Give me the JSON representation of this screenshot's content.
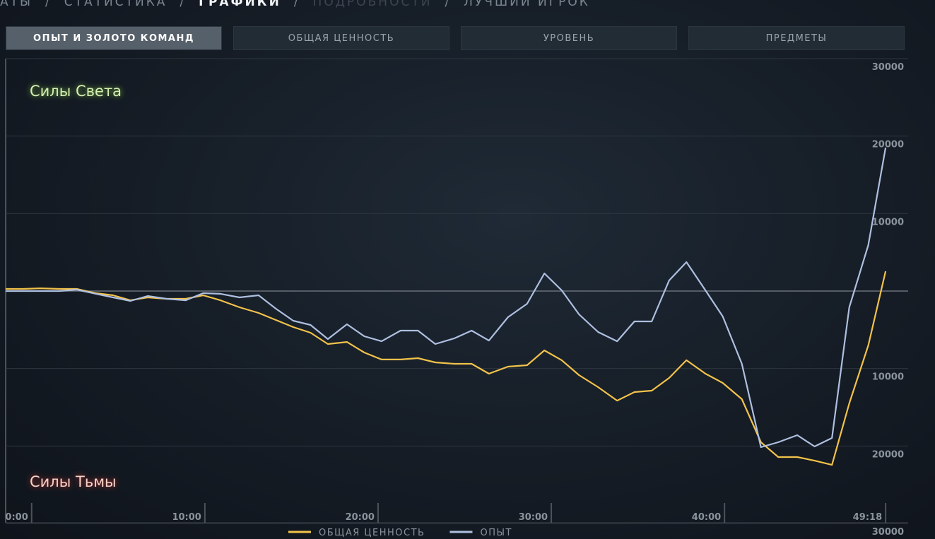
{
  "nav": {
    "items": [
      "АТЫ",
      "СТАТИСТИКА",
      "ГРАФИКИ",
      "ПОДРОБНОСТИ",
      "ЛУЧШИЙ ИГРОК"
    ],
    "separator": "/",
    "active": 2
  },
  "tabs": {
    "items": [
      "ОПЫТ И ЗОЛОТО КОМАНД",
      "ОБЩАЯ ЦЕННОСТЬ",
      "УРОВЕНЬ",
      "ПРЕДМЕТЫ"
    ],
    "active": 0
  },
  "chart_data": {
    "type": "line",
    "top_label": "Силы Света",
    "bottom_label": "Силы Тьмы",
    "x": [
      -1.5,
      -0.5,
      0.5,
      1.6,
      2.6,
      3.7,
      4.7,
      5.7,
      6.7,
      7.8,
      8.9,
      9.9,
      10.9,
      12.0,
      13.1,
      14.1,
      15.1,
      16.1,
      17.1,
      18.2,
      19.2,
      20.2,
      21.3,
      22.3,
      23.3,
      24.4,
      25.4,
      26.4,
      27.5,
      28.6,
      29.6,
      30.6,
      31.6,
      32.7,
      33.8,
      34.8,
      35.8,
      36.8,
      37.8,
      38.9,
      39.9,
      41.0,
      42.1,
      43.1,
      44.2,
      45.2,
      46.2,
      47.2,
      48.3,
      49.3
    ],
    "xlim": [
      -1.5,
      50.6
    ],
    "xticks": [
      {
        "value": 0,
        "label": "0:00"
      },
      {
        "value": 10,
        "label": "10:00"
      },
      {
        "value": 20,
        "label": "20:00"
      },
      {
        "value": 30,
        "label": "30:00"
      },
      {
        "value": 40,
        "label": "40:00"
      },
      {
        "value": 49.3,
        "label": "49:18"
      }
    ],
    "ylim": [
      -30000,
      30000
    ],
    "yticks": [
      30000,
      20000,
      10000,
      {
        "value": -10000,
        "label": "10000"
      },
      {
        "value": -20000,
        "label": "20000"
      },
      {
        "value": -30000,
        "label": "30000"
      }
    ],
    "grid": true,
    "legend": "bottom",
    "series": [
      {
        "name": "ОБЩАЯ ЦЕННОСТЬ",
        "color": "#f2c24a",
        "values": [
          270,
          270,
          360,
          270,
          270,
          -270,
          -550,
          -1190,
          -820,
          -1000,
          -1000,
          -550,
          -1190,
          -2100,
          -2830,
          -3740,
          -4650,
          -5380,
          -6840,
          -6570,
          -7930,
          -8840,
          -8840,
          -8660,
          -9210,
          -9390,
          -9390,
          -10670,
          -9760,
          -9570,
          -7660,
          -8930,
          -10850,
          -12400,
          -14140,
          -13040,
          -12860,
          -11220,
          -8930,
          -10670,
          -11860,
          -13950,
          -19510,
          -21430,
          -21430,
          -21890,
          -22440,
          -14500,
          -7020,
          2550
        ]
      },
      {
        "name": "ОПЫТ",
        "color": "#aebfe0",
        "values": [
          0,
          0,
          0,
          0,
          180,
          -360,
          -820,
          -1280,
          -640,
          -1000,
          -1190,
          -270,
          -360,
          -820,
          -550,
          -2280,
          -3830,
          -4380,
          -6200,
          -4290,
          -5840,
          -6480,
          -5110,
          -5110,
          -6840,
          -6110,
          -5110,
          -6390,
          -3370,
          -1640,
          2280,
          90,
          -3010,
          -5290,
          -6480,
          -3920,
          -3920,
          1370,
          3740,
          90,
          -3280,
          -9390,
          -20150,
          -19510,
          -18600,
          -20060,
          -18970,
          -2100,
          5930,
          18510
        ]
      }
    ]
  }
}
